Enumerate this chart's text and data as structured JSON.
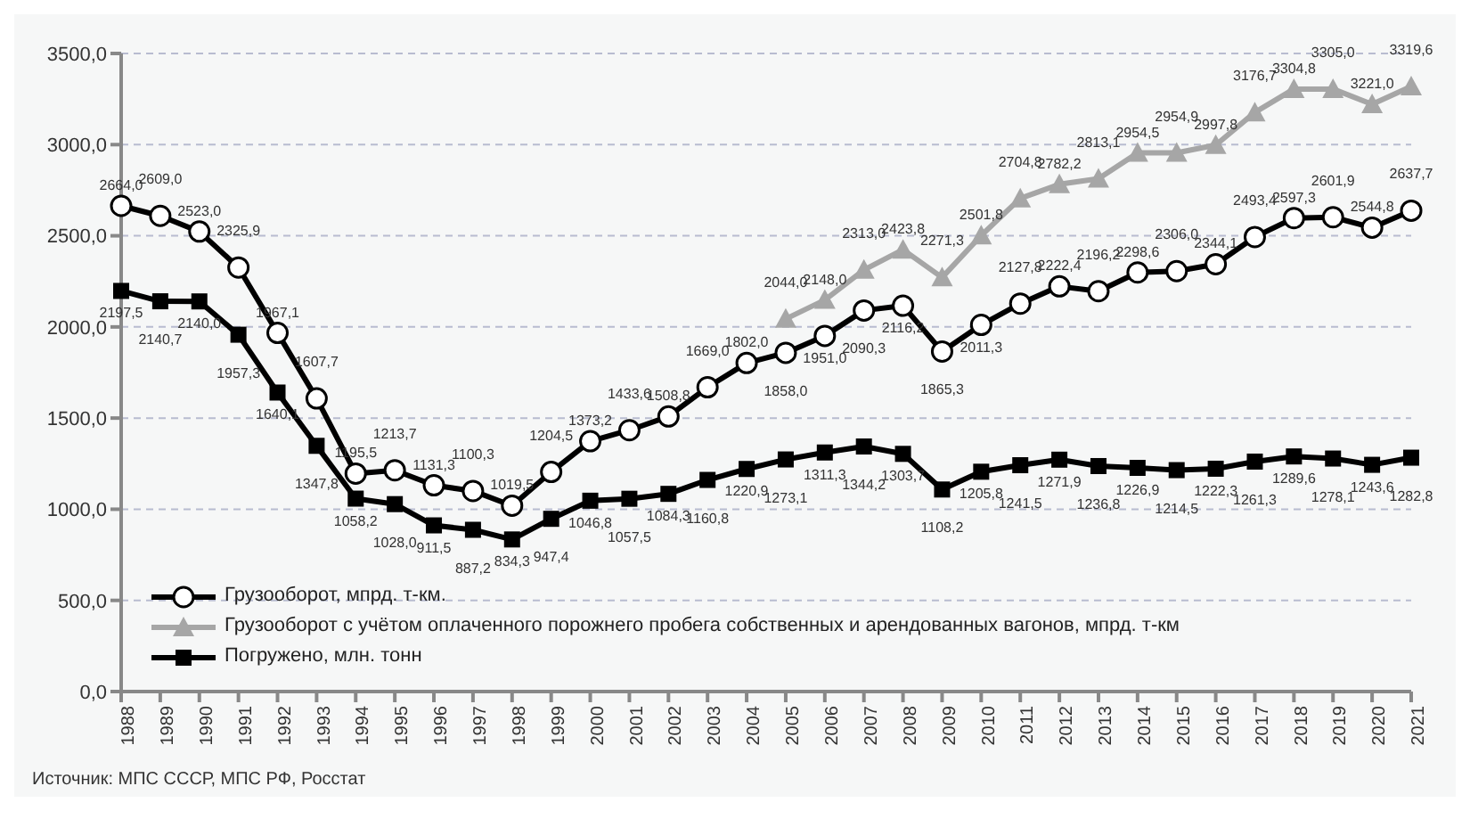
{
  "chart_data": {
    "type": "line",
    "categories": [
      "1988",
      "1989",
      "1990",
      "1991",
      "1992",
      "1993",
      "1994",
      "1995",
      "1996",
      "1997",
      "1998",
      "1999",
      "2000",
      "2001",
      "2002",
      "2003",
      "2004",
      "2005",
      "2006",
      "2007",
      "2008",
      "2009",
      "2010",
      "2011",
      "2012",
      "2013",
      "2014",
      "2015",
      "2016",
      "2017",
      "2018",
      "2019",
      "2020",
      "2021"
    ],
    "series": [
      {
        "name": "Грузооборот,  мпрд.  т-км.",
        "color": "#000000",
        "marker": "circle",
        "values": [
          2664.0,
          2609.0,
          2523.0,
          2325.9,
          1967.1,
          1607.7,
          1195.5,
          1213.7,
          1131.3,
          1100.3,
          1019.5,
          1204.5,
          1373.2,
          1433.6,
          1508.8,
          1669.0,
          1802.0,
          1858.0,
          1951.0,
          2090.3,
          2116.2,
          1865.3,
          2011.3,
          2127.8,
          2222.4,
          2196.2,
          2298.6,
          2306.0,
          2344.1,
          2493.4,
          2597.3,
          2601.9,
          2544.8,
          2637.7
        ],
        "value_labels": [
          "2664,0",
          "2609,0",
          "2523,0",
          "2325,9",
          "1967,1",
          "1607,7",
          "1195,5",
          "1213,7",
          "1131,3",
          "1100,3",
          "1019,5",
          "1204,5",
          "1373,2",
          "1433,6",
          "1508,8",
          "1669,0",
          "1802,0",
          "1858,0",
          "1951,0",
          "2090,3",
          "2116,2",
          "1865,3",
          "2011,3",
          "2127,8",
          "2222,4",
          "2196,2",
          "2298,6",
          "2306,0",
          "2344,1",
          "2493,4",
          "2597,3",
          "2601,9",
          "2544,8",
          "2637,7"
        ]
      },
      {
        "name": "Грузооборот  с  учётом  оплаченного  порожнего  пробега собственных и арендованных  вагонов,  мпрд.  т-км",
        "color": "#a6a6a6",
        "marker": "triangle",
        "values": [
          null,
          null,
          null,
          null,
          null,
          null,
          null,
          null,
          null,
          null,
          null,
          null,
          null,
          null,
          null,
          null,
          null,
          2044.0,
          2148.0,
          2313.0,
          2423.8,
          2271.3,
          2501.8,
          2704.8,
          2782.2,
          2813.1,
          2954.5,
          2954.9,
          2997.8,
          3176.7,
          3304.8,
          3305.0,
          3221.0,
          3319.6
        ],
        "value_labels": [
          null,
          null,
          null,
          null,
          null,
          null,
          null,
          null,
          null,
          null,
          null,
          null,
          null,
          null,
          null,
          null,
          null,
          "2044,0",
          "2148,0",
          "2313,0",
          "2423,8",
          "2271,3",
          "2501,8",
          "2704,8",
          "2782,2",
          "2813,1",
          "2954,5",
          "2954,9",
          "2997,8",
          "3176,7",
          "3304,8",
          "3305,0",
          "3221,0",
          "3319,6"
        ]
      },
      {
        "name": "Погружено,  млн.  тонн",
        "color": "#000000",
        "marker": "square",
        "values": [
          2197.5,
          2140.7,
          2140.0,
          1957.3,
          1640.1,
          1347.8,
          1058.2,
          1028.0,
          911.5,
          887.2,
          834.3,
          947.4,
          1046.8,
          1057.5,
          1084.3,
          1160.8,
          1220.9,
          1273.1,
          1311.3,
          1344.2,
          1303.7,
          1108.2,
          1205.8,
          1241.5,
          1271.9,
          1236.8,
          1226.9,
          1214.5,
          1222.3,
          1261.3,
          1289.6,
          1278.1,
          1243.6,
          1282.8
        ],
        "value_labels": [
          "2197,5",
          "2140,7",
          "2140,0",
          "1957,3",
          "1640,1",
          "1347,8",
          "1058,2",
          "1028,0",
          "911,5",
          "887,2",
          "834,3",
          "947,4",
          "1046,8",
          "1057,5",
          "1084,3",
          "1160,8",
          "1220,9",
          "1273,1",
          "1311,3",
          "1344,2",
          "1303,7",
          "1108,2",
          "1205,8",
          "1241,5",
          "1271,9",
          "1236,8",
          "1226,9",
          "1214,5",
          "1222,3",
          "1261,3",
          "1289,6",
          "1278,1",
          "1243,6",
          "1282,8"
        ]
      }
    ],
    "ylim": [
      0,
      3500
    ],
    "yticks": [
      {
        "value": 0,
        "label": "0,0"
      },
      {
        "value": 500,
        "label": "500,0"
      },
      {
        "value": 1000,
        "label": "1000,0"
      },
      {
        "value": 1500,
        "label": "1500,0"
      },
      {
        "value": 2000,
        "label": "2000,0"
      },
      {
        "value": 2500,
        "label": "2500,0"
      },
      {
        "value": 3000,
        "label": "3000,0"
      },
      {
        "value": 3500,
        "label": "3500,0"
      }
    ],
    "grid": "y",
    "legend": "bottom left",
    "annotations": [
      "Источник: МПС СССР, МПС РФ, Росстат"
    ]
  }
}
